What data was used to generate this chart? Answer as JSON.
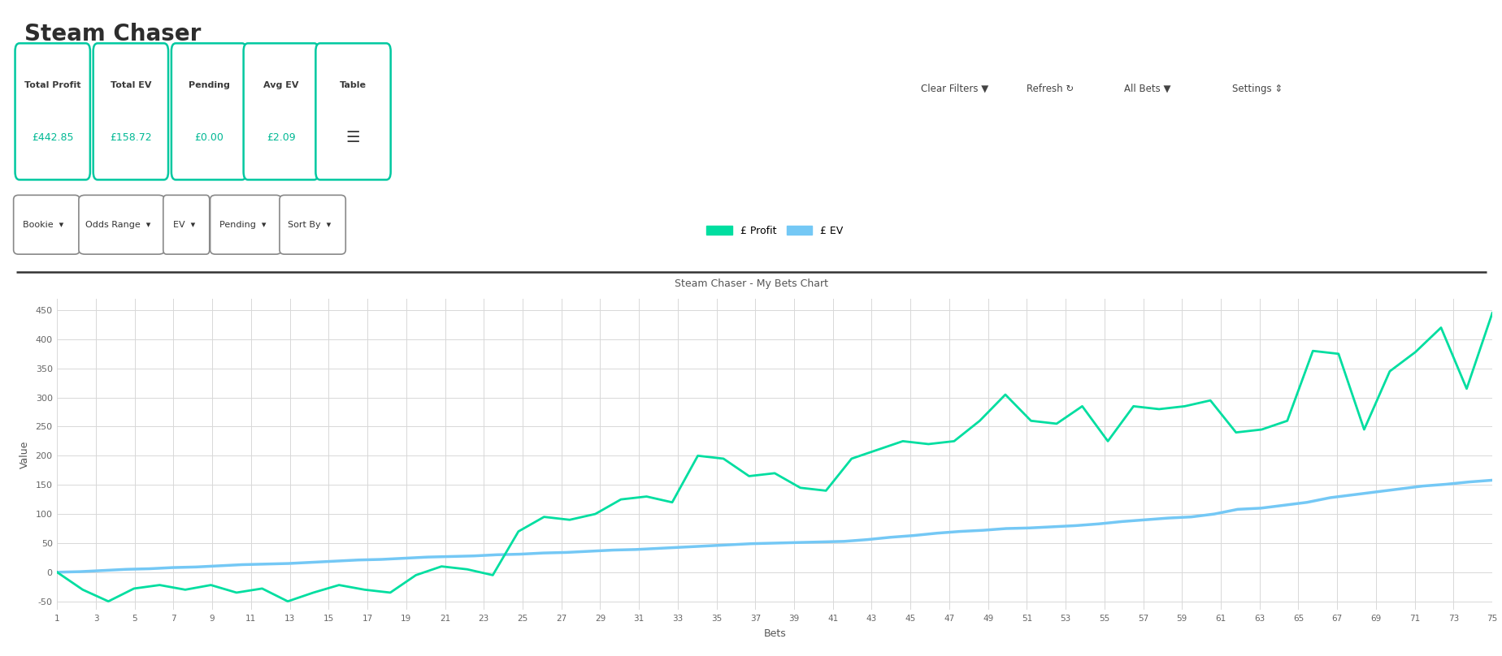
{
  "title": "Steam Chaser",
  "chart_title": "Steam Chaser - My Bets Chart",
  "stats": [
    {
      "label": "Total Profit",
      "value": "£442.85"
    },
    {
      "label": "Total EV",
      "value": "£158.72"
    },
    {
      "label": "Pending",
      "value": "£0.00"
    },
    {
      "label": "Avg EV",
      "value": "£2.09"
    },
    {
      "label": "Table",
      "value": "☰"
    }
  ],
  "filters": [
    "Bookie",
    "Odds Range",
    "EV",
    "Pending",
    "Sort By"
  ],
  "top_right_buttons": [
    "Clear Filters ▼",
    "Refresh ↻",
    "All Bets ▼",
    "Settings ⇕"
  ],
  "xlabel": "Bets",
  "ylabel": "Value",
  "legend_profit": "£ Profit",
  "legend_ev": "£ EV",
  "profit_color": "#00dea0",
  "ev_color": "#74c8f5",
  "background_color": "#ffffff",
  "grid_color": "#d8d8d8",
  "yticks": [
    -50,
    0,
    50,
    100,
    150,
    200,
    250,
    300,
    350,
    400,
    450
  ],
  "xtick_labels": [
    "1",
    "3",
    "5",
    "7",
    "9",
    "11",
    "13",
    "15",
    "17",
    "19",
    "21",
    "23",
    "25",
    "27",
    "29",
    "31",
    "33",
    "35",
    "37",
    "39",
    "41",
    "43",
    "45",
    "47",
    "49",
    "51",
    "53",
    "55",
    "57",
    "59",
    "61",
    "63",
    "65",
    "67",
    "69",
    "71",
    "73",
    "75"
  ],
  "profit_data": [
    0,
    -30,
    -50,
    -28,
    -22,
    -30,
    -22,
    -35,
    -28,
    -50,
    -35,
    -22,
    -30,
    -35,
    -5,
    10,
    5,
    -5,
    70,
    95,
    90,
    100,
    125,
    130,
    120,
    200,
    195,
    165,
    170,
    145,
    140,
    195,
    210,
    225,
    220,
    225,
    260,
    305,
    260,
    255,
    285,
    225,
    285,
    280,
    285,
    295,
    240,
    245,
    260,
    380,
    375,
    245,
    345,
    378,
    420,
    315,
    445
  ],
  "ev_data": [
    0,
    1,
    3,
    5,
    6,
    8,
    9,
    11,
    13,
    14,
    15,
    17,
    19,
    21,
    22,
    24,
    26,
    27,
    28,
    30,
    31,
    33,
    34,
    36,
    38,
    39,
    41,
    43,
    45,
    47,
    49,
    50,
    51,
    52,
    53,
    56,
    60,
    63,
    67,
    70,
    72,
    75,
    76,
    78,
    80,
    83,
    87,
    90,
    93,
    95,
    100,
    108,
    110,
    115,
    120,
    128,
    133,
    138,
    143,
    148,
    151,
    155,
    158
  ]
}
